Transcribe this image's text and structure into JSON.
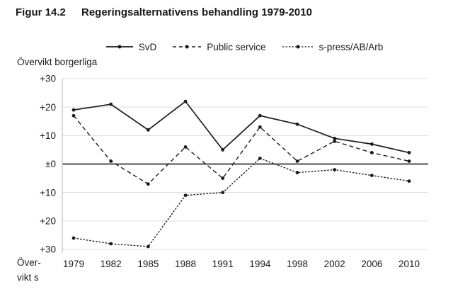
{
  "header": {
    "figure_label": "Figur 14.2",
    "title": "Regeringsalternativens behandling 1979-2010"
  },
  "axis_labels": {
    "top": "Övervikt borgerliga",
    "bottom_line1": "Över-",
    "bottom_line2": "vikt s"
  },
  "chart_data": {
    "type": "line",
    "title": "Regeringsalternativens behandling 1979-2010",
    "categories": [
      "1979",
      "1982",
      "1985",
      "1988",
      "1991",
      "1994",
      "1998",
      "2002",
      "2006",
      "2010"
    ],
    "series": [
      {
        "name": "SvD",
        "style": "solid",
        "values": [
          19,
          21,
          12,
          22,
          5,
          17,
          14,
          9,
          7,
          4
        ]
      },
      {
        "name": "Public service",
        "style": "dashed",
        "values": [
          17,
          1,
          -7,
          6,
          -5,
          13,
          1,
          8,
          4,
          1
        ]
      },
      {
        "name": "s-press/AB/Arb",
        "style": "dotted",
        "values": [
          -26,
          -28,
          -29,
          -11,
          -10,
          2,
          -3,
          -2,
          -4,
          -6
        ]
      }
    ],
    "ylim": [
      -30,
      30
    ],
    "yticks": [
      30,
      20,
      10,
      0,
      -10,
      -20,
      -30
    ],
    "ytick_labels": [
      "+30",
      "+20",
      "+10",
      "±0",
      "+10",
      "+20",
      "+30"
    ],
    "ylabel_positive": "Övervikt borgerliga",
    "ylabel_negative": "Övervikt s",
    "legend_position": "top",
    "grid": true
  },
  "colors": {
    "line": "#1a1a1a",
    "grid": "#dcdcdc",
    "zero_line": "#4d4d4d",
    "axis": "#bfbfbf",
    "text": "#1a1a1a"
  }
}
